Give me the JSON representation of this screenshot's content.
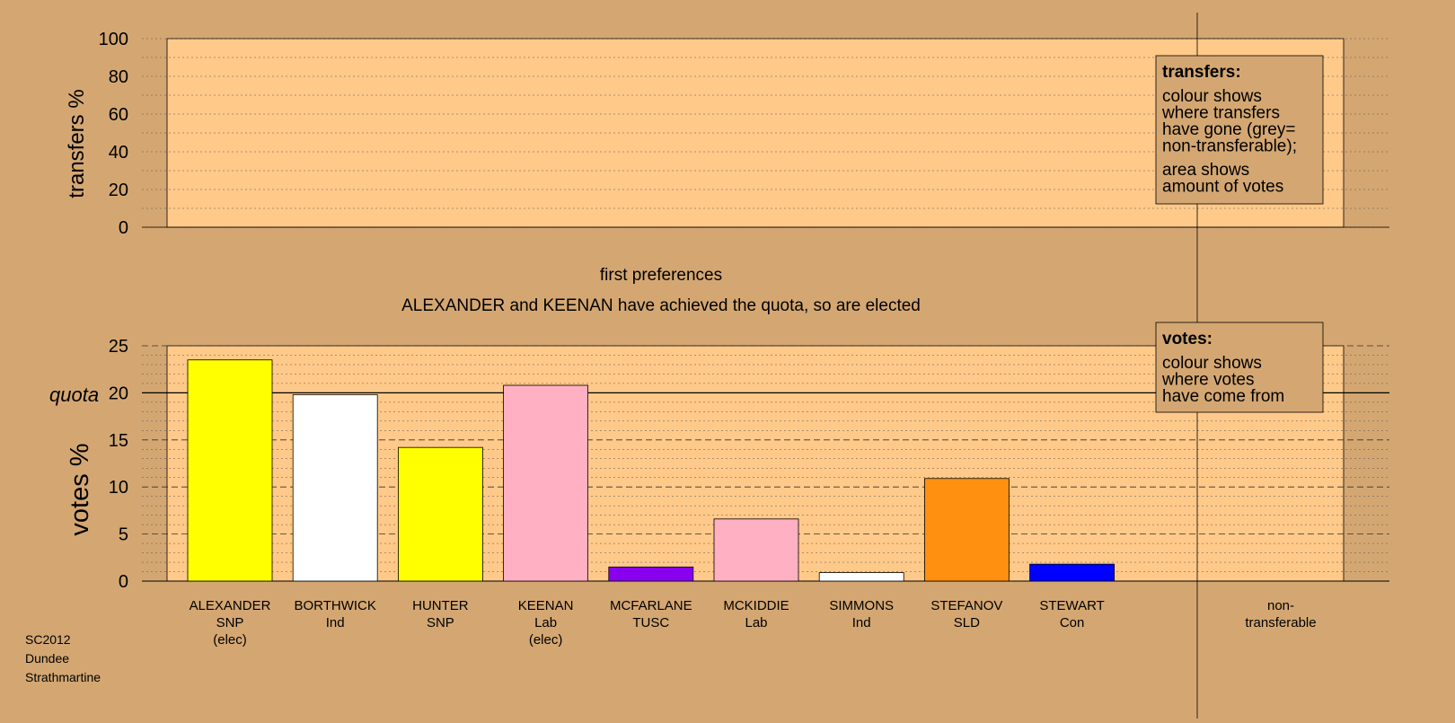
{
  "chart_data": {
    "type": "bar",
    "colors": {
      "background": "#D4A772",
      "plot_fill": "#FFC98A",
      "SNP": "#FFFF00",
      "Ind": "#FFFFFF",
      "Lab": "#FFB0C2",
      "TUSC": "#8800EE",
      "SLD": "#FF9010",
      "Con": "#0000FF"
    },
    "transfers_panel": {
      "ylabel": "transfers %",
      "ylim": [
        0,
        100
      ],
      "yticks": [
        "0",
        "20",
        "40",
        "60",
        "80",
        "100"
      ],
      "legend": {
        "title": "transfers:",
        "lines1": [
          "colour shows",
          "where transfers",
          "have gone (grey=",
          "non-transferable);"
        ],
        "lines2": [
          "area shows",
          "amount of votes"
        ]
      }
    },
    "stage_title": "first preferences",
    "stage_subtitle": "ALEXANDER and KEENAN have achieved the quota, so are elected",
    "votes_panel": {
      "ylabel": "votes %",
      "ylim": [
        0,
        25
      ],
      "yticks": [
        "0",
        "5",
        "10",
        "15",
        "20",
        "25"
      ],
      "quota": 20,
      "quota_label": "quota",
      "legend": {
        "title": "votes:",
        "lines": [
          "colour shows",
          "where votes",
          "have come from"
        ]
      }
    },
    "candidates": [
      {
        "name": "ALEXANDER",
        "party": "SNP",
        "status": "(elec)",
        "value": 23.5,
        "color": "#FFFF00"
      },
      {
        "name": "BORTHWICK",
        "party": "Ind",
        "status": "",
        "value": 19.8,
        "color": "#FFFFFF"
      },
      {
        "name": "HUNTER",
        "party": "SNP",
        "status": "",
        "value": 14.2,
        "color": "#FFFF00"
      },
      {
        "name": "KEENAN",
        "party": "Lab",
        "status": "(elec)",
        "value": 20.8,
        "color": "#FFB0C2"
      },
      {
        "name": "MCFARLANE",
        "party": "TUSC",
        "status": "",
        "value": 1.5,
        "color": "#8800EE"
      },
      {
        "name": "MCKIDDIE",
        "party": "Lab",
        "status": "",
        "value": 6.6,
        "color": "#FFB0C2"
      },
      {
        "name": "SIMMONS",
        "party": "Ind",
        "status": "",
        "value": 0.9,
        "color": "#FFFFFF"
      },
      {
        "name": "STEFANOV",
        "party": "SLD",
        "status": "",
        "value": 10.9,
        "color": "#FF9010"
      },
      {
        "name": "STEWART",
        "party": "Con",
        "status": "",
        "value": 1.8,
        "color": "#0000FF"
      }
    ],
    "nontransferable": {
      "line1": "non-",
      "line2": "transferable"
    }
  },
  "footer": {
    "election": "SC2012",
    "council": "Dundee",
    "ward": "Strathmartine"
  }
}
